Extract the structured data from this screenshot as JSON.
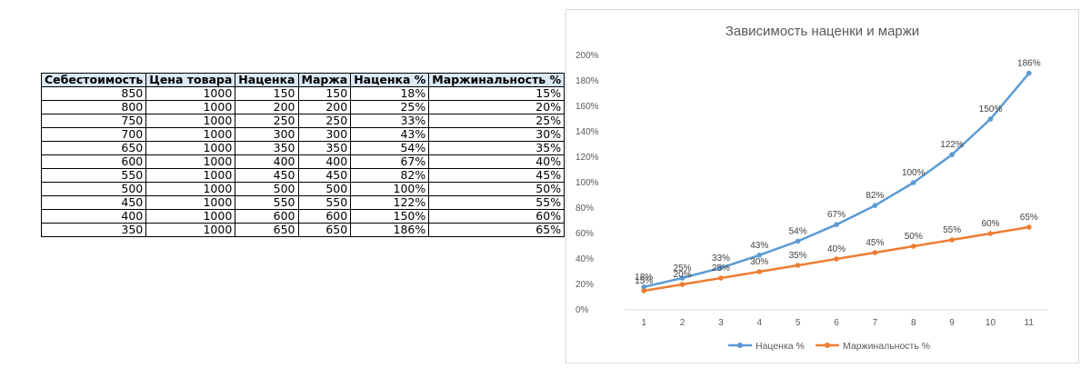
{
  "table": {
    "headers": [
      "Себестоимость",
      "Цена товара",
      "Наценка",
      "Маржа",
      "Наценка %",
      "Маржинальность %"
    ],
    "rows": [
      [
        "850",
        "1000",
        "150",
        "150",
        "18%",
        "15%"
      ],
      [
        "800",
        "1000",
        "200",
        "200",
        "25%",
        "20%"
      ],
      [
        "750",
        "1000",
        "250",
        "250",
        "33%",
        "25%"
      ],
      [
        "700",
        "1000",
        "300",
        "300",
        "43%",
        "30%"
      ],
      [
        "650",
        "1000",
        "350",
        "350",
        "54%",
        "35%"
      ],
      [
        "600",
        "1000",
        "400",
        "400",
        "67%",
        "40%"
      ],
      [
        "550",
        "1000",
        "450",
        "450",
        "82%",
        "45%"
      ],
      [
        "500",
        "1000",
        "500",
        "500",
        "100%",
        "50%"
      ],
      [
        "450",
        "1000",
        "550",
        "550",
        "122%",
        "55%"
      ],
      [
        "400",
        "1000",
        "600",
        "600",
        "150%",
        "60%"
      ],
      [
        "350",
        "1000",
        "650",
        "650",
        "186%",
        "65%"
      ]
    ]
  },
  "chart_data": {
    "type": "line",
    "title": "Зависимость наценки и маржи",
    "x": [
      1,
      2,
      3,
      4,
      5,
      6,
      7,
      8,
      9,
      10,
      11
    ],
    "ylim": [
      0,
      200
    ],
    "yticks": [
      "0%",
      "20%",
      "40%",
      "60%",
      "80%",
      "100%",
      "120%",
      "140%",
      "160%",
      "180%",
      "200%"
    ],
    "grid": false,
    "legend": "bottom",
    "series": [
      {
        "name": "Наценка %",
        "color": "#5b9bd5",
        "values": [
          18,
          25,
          33,
          43,
          54,
          67,
          82,
          100,
          122,
          150,
          186
        ],
        "labels": [
          "18%",
          "25%",
          "33%",
          "43%",
          "54%",
          "67%",
          "82%",
          "100%",
          "122%",
          "150%",
          "186%"
        ]
      },
      {
        "name": "Маржинальность %",
        "color": "#ed7d31",
        "values": [
          15,
          20,
          25,
          30,
          35,
          40,
          45,
          50,
          55,
          60,
          65
        ],
        "labels": [
          "15%",
          "20%",
          "25%",
          "30%",
          "35%",
          "40%",
          "45%",
          "50%",
          "55%",
          "60%",
          "65%"
        ]
      }
    ]
  }
}
